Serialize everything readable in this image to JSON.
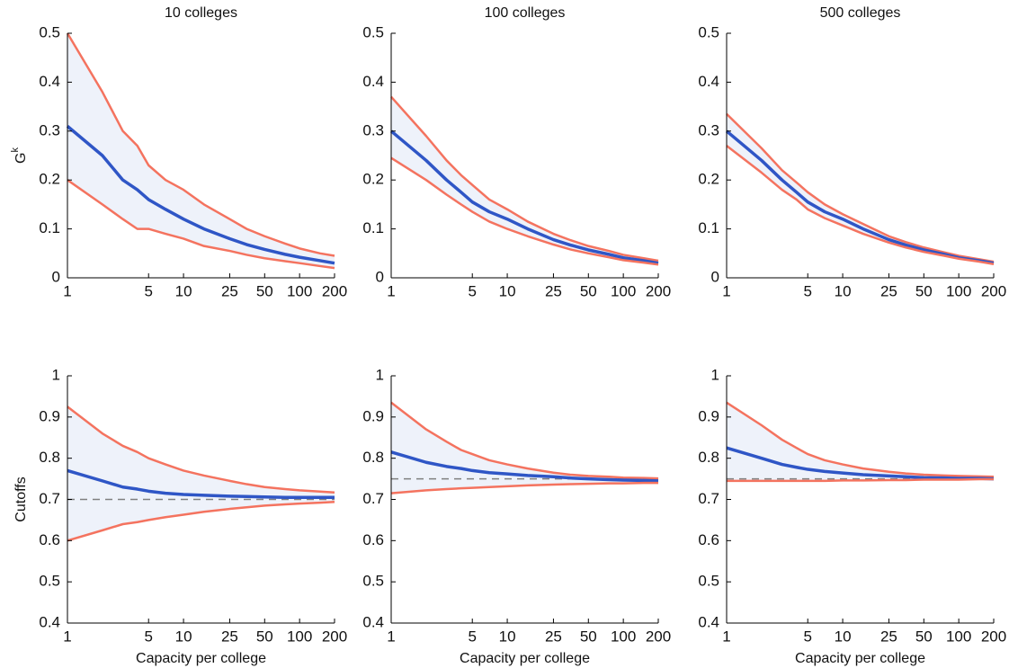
{
  "chart_data": [
    {
      "type": "line",
      "title": "10 colleges",
      "ylabel": "G",
      "ylabel_sup": "k",
      "x": [
        1,
        2,
        3,
        4,
        5,
        7,
        10,
        15,
        25,
        35,
        50,
        75,
        100,
        150,
        200
      ],
      "xscale": "log",
      "xlim": [
        1,
        200
      ],
      "xticks": [
        1,
        5,
        10,
        25,
        50,
        100,
        200
      ],
      "ylim": [
        0,
        0.5
      ],
      "yticks": [
        0,
        0.1,
        0.2,
        0.3,
        0.4,
        0.5
      ],
      "band_color": "#eef2fa",
      "series": [
        {
          "color": "#f4735f",
          "values": [
            0.5,
            0.38,
            0.3,
            0.27,
            0.23,
            0.2,
            0.18,
            0.15,
            0.12,
            0.1,
            0.085,
            0.07,
            0.06,
            0.05,
            0.045
          ]
        },
        {
          "color": "#2f56c6",
          "values": [
            0.31,
            0.25,
            0.2,
            0.18,
            0.16,
            0.14,
            0.12,
            0.1,
            0.08,
            0.068,
            0.058,
            0.048,
            0.042,
            0.035,
            0.03
          ]
        },
        {
          "color": "#f4735f",
          "values": [
            0.2,
            0.15,
            0.12,
            0.1,
            0.1,
            0.09,
            0.08,
            0.065,
            0.055,
            0.047,
            0.04,
            0.034,
            0.03,
            0.024,
            0.02
          ]
        }
      ]
    },
    {
      "type": "line",
      "title": "100 colleges",
      "x": [
        1,
        2,
        3,
        4,
        5,
        7,
        10,
        15,
        25,
        35,
        50,
        75,
        100,
        150,
        200
      ],
      "xscale": "log",
      "xlim": [
        1,
        200
      ],
      "xticks": [
        1,
        5,
        10,
        25,
        50,
        100,
        200
      ],
      "ylim": [
        0,
        0.5
      ],
      "yticks": [
        0,
        0.1,
        0.2,
        0.3,
        0.4,
        0.5
      ],
      "band_color": "#eef2fa",
      "series": [
        {
          "color": "#f4735f",
          "values": [
            0.37,
            0.29,
            0.24,
            0.21,
            0.19,
            0.16,
            0.14,
            0.115,
            0.09,
            0.077,
            0.065,
            0.055,
            0.047,
            0.04,
            0.035
          ]
        },
        {
          "color": "#2f56c6",
          "values": [
            0.3,
            0.24,
            0.2,
            0.175,
            0.155,
            0.135,
            0.12,
            0.1,
            0.078,
            0.067,
            0.057,
            0.048,
            0.041,
            0.035,
            0.03
          ]
        },
        {
          "color": "#f4735f",
          "values": [
            0.245,
            0.2,
            0.17,
            0.15,
            0.135,
            0.115,
            0.1,
            0.085,
            0.068,
            0.058,
            0.05,
            0.042,
            0.036,
            0.031,
            0.027
          ]
        }
      ]
    },
    {
      "type": "line",
      "title": "500 colleges",
      "x": [
        1,
        2,
        3,
        4,
        5,
        7,
        10,
        15,
        25,
        35,
        50,
        75,
        100,
        150,
        200
      ],
      "xscale": "log",
      "xlim": [
        1,
        200
      ],
      "xticks": [
        1,
        5,
        10,
        25,
        50,
        100,
        200
      ],
      "ylim": [
        0,
        0.5
      ],
      "yticks": [
        0,
        0.1,
        0.2,
        0.3,
        0.4,
        0.5
      ],
      "band_color": "#eef2fa",
      "series": [
        {
          "color": "#f4735f",
          "values": [
            0.335,
            0.265,
            0.22,
            0.195,
            0.175,
            0.15,
            0.13,
            0.11,
            0.085,
            0.073,
            0.062,
            0.052,
            0.045,
            0.038,
            0.033
          ]
        },
        {
          "color": "#2f56c6",
          "values": [
            0.3,
            0.24,
            0.2,
            0.175,
            0.155,
            0.135,
            0.12,
            0.1,
            0.078,
            0.067,
            0.057,
            0.048,
            0.041,
            0.035,
            0.03
          ]
        },
        {
          "color": "#f4735f",
          "values": [
            0.27,
            0.215,
            0.18,
            0.16,
            0.14,
            0.122,
            0.107,
            0.09,
            0.072,
            0.062,
            0.053,
            0.045,
            0.039,
            0.033,
            0.028
          ]
        }
      ]
    },
    {
      "type": "line",
      "ylabel": "Cutoffs",
      "xlabel": "Capacity per college",
      "x": [
        1,
        2,
        3,
        4,
        5,
        7,
        10,
        15,
        25,
        35,
        50,
        75,
        100,
        150,
        200
      ],
      "xscale": "log",
      "xlim": [
        1,
        200
      ],
      "xticks": [
        1,
        5,
        10,
        25,
        50,
        100,
        200
      ],
      "ylim": [
        0.4,
        1
      ],
      "yticks": [
        0.4,
        0.5,
        0.6,
        0.7,
        0.8,
        0.9,
        1
      ],
      "band_color": "#eef2fa",
      "hline": {
        "value": 0.7,
        "color": "#808080"
      },
      "series": [
        {
          "color": "#f4735f",
          "values": [
            0.925,
            0.86,
            0.83,
            0.815,
            0.8,
            0.785,
            0.77,
            0.758,
            0.745,
            0.737,
            0.73,
            0.725,
            0.722,
            0.719,
            0.717
          ]
        },
        {
          "color": "#2f56c6",
          "values": [
            0.77,
            0.745,
            0.73,
            0.725,
            0.72,
            0.715,
            0.712,
            0.71,
            0.708,
            0.707,
            0.706,
            0.705,
            0.705,
            0.705,
            0.705
          ]
        },
        {
          "color": "#f4735f",
          "values": [
            0.6,
            0.625,
            0.64,
            0.645,
            0.65,
            0.657,
            0.663,
            0.67,
            0.677,
            0.681,
            0.685,
            0.688,
            0.69,
            0.692,
            0.694
          ]
        }
      ]
    },
    {
      "type": "line",
      "xlabel": "Capacity per college",
      "x": [
        1,
        2,
        3,
        4,
        5,
        7,
        10,
        15,
        25,
        35,
        50,
        75,
        100,
        150,
        200
      ],
      "xscale": "log",
      "xlim": [
        1,
        200
      ],
      "xticks": [
        1,
        5,
        10,
        25,
        50,
        100,
        200
      ],
      "ylim": [
        0.4,
        1
      ],
      "yticks": [
        0.4,
        0.5,
        0.6,
        0.7,
        0.8,
        0.9,
        1
      ],
      "band_color": "#eef2fa",
      "hline": {
        "value": 0.75,
        "color": "#808080"
      },
      "series": [
        {
          "color": "#f4735f",
          "values": [
            0.935,
            0.87,
            0.84,
            0.82,
            0.81,
            0.795,
            0.785,
            0.775,
            0.765,
            0.76,
            0.757,
            0.755,
            0.753,
            0.752,
            0.751
          ]
        },
        {
          "color": "#2f56c6",
          "values": [
            0.815,
            0.79,
            0.78,
            0.775,
            0.77,
            0.765,
            0.762,
            0.758,
            0.755,
            0.752,
            0.75,
            0.748,
            0.747,
            0.746,
            0.745
          ]
        },
        {
          "color": "#f4735f",
          "values": [
            0.715,
            0.722,
            0.725,
            0.727,
            0.728,
            0.73,
            0.732,
            0.734,
            0.736,
            0.737,
            0.738,
            0.739,
            0.739,
            0.74,
            0.74
          ]
        }
      ]
    },
    {
      "type": "line",
      "xlabel": "Capacity per college",
      "x": [
        1,
        2,
        3,
        4,
        5,
        7,
        10,
        15,
        25,
        35,
        50,
        75,
        100,
        150,
        200
      ],
      "xscale": "log",
      "xlim": [
        1,
        200
      ],
      "xticks": [
        1,
        5,
        10,
        25,
        50,
        100,
        200
      ],
      "ylim": [
        0.4,
        1
      ],
      "yticks": [
        0.4,
        0.5,
        0.6,
        0.7,
        0.8,
        0.9,
        1
      ],
      "band_color": "#eef2fa",
      "hline": {
        "value": 0.75,
        "color": "#808080"
      },
      "series": [
        {
          "color": "#f4735f",
          "values": [
            0.935,
            0.88,
            0.845,
            0.825,
            0.81,
            0.795,
            0.785,
            0.775,
            0.767,
            0.763,
            0.76,
            0.758,
            0.757,
            0.756,
            0.755
          ]
        },
        {
          "color": "#2f56c6",
          "values": [
            0.825,
            0.8,
            0.785,
            0.778,
            0.773,
            0.768,
            0.764,
            0.76,
            0.757,
            0.755,
            0.753,
            0.752,
            0.751,
            0.751,
            0.75
          ]
        },
        {
          "color": "#f4735f",
          "values": [
            0.745,
            0.745,
            0.745,
            0.745,
            0.745,
            0.745,
            0.746,
            0.746,
            0.747,
            0.747,
            0.748,
            0.748,
            0.748,
            0.749,
            0.749
          ]
        }
      ]
    }
  ]
}
